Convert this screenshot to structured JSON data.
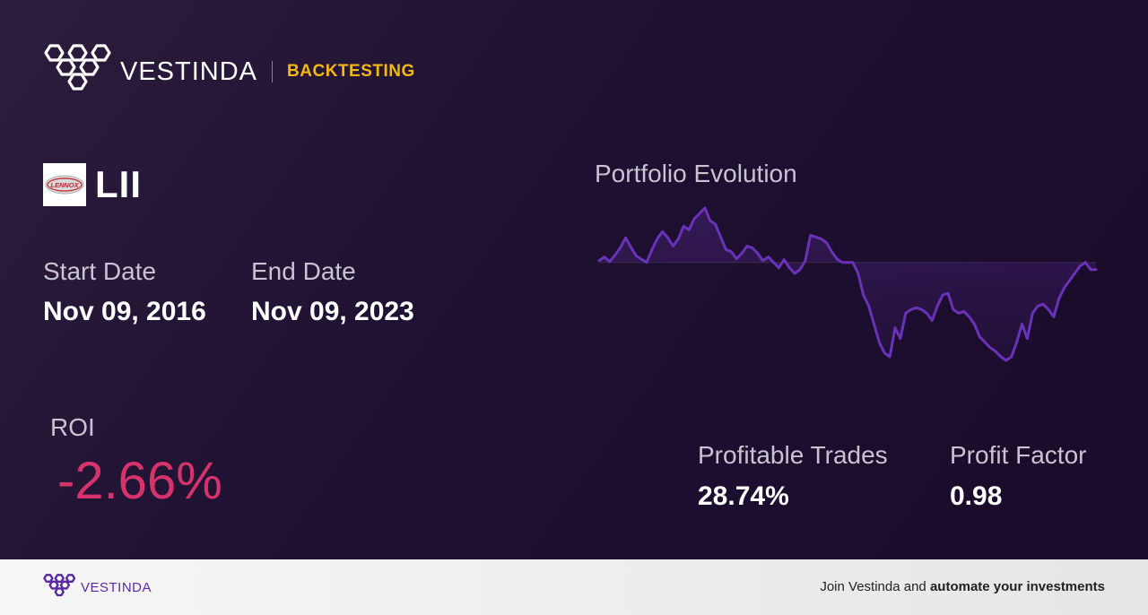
{
  "header": {
    "brand_name": "VESTINDA",
    "tag": "BACKTESTING",
    "logo_icon": "hexagon-cluster-logo-icon",
    "tag_color": "#f5b80e"
  },
  "ticker": {
    "symbol": "LII",
    "logo_text": "LENNOX"
  },
  "dates": {
    "start_label": "Start Date",
    "start_value": "Nov 09, 2016",
    "end_label": "End Date",
    "end_value": "Nov 09, 2023"
  },
  "roi": {
    "label": "ROI",
    "value": "-2.66%",
    "color": "#d6336c"
  },
  "chart": {
    "title": "Portfolio Evolution",
    "line_color": "#6a32b8"
  },
  "chart_data": {
    "type": "area",
    "title": "Portfolio Evolution",
    "xlabel": "",
    "ylabel": "",
    "baseline": 0,
    "grid": false,
    "series": [
      {
        "values": [
          0.5,
          1.5,
          0.2,
          2.0,
          4.0,
          6.8,
          4.2,
          1.8,
          0.9,
          0.0,
          3.5,
          6.5,
          8.5,
          6.8,
          4.5,
          6.5,
          10.0,
          9.0,
          12.0,
          13.5,
          15.0,
          11.5,
          10.5,
          7.0,
          3.5,
          3.0,
          1.0,
          2.5,
          4.5,
          4.0,
          2.5,
          0.5,
          1.5,
          0.0,
          -1.5,
          0.8,
          -1.5,
          -3.0,
          -2.0,
          0.5,
          7.5,
          7.0,
          6.5,
          5.5,
          3.0,
          1.0,
          0.0,
          0.0,
          0.0,
          -3.0,
          -9.0,
          -12.0,
          -17.0,
          -22.0,
          -25.0,
          -26.0,
          -18.0,
          -21.0,
          -14.0,
          -13.0,
          -12.5,
          -13.0,
          -14.0,
          -16.0,
          -12.0,
          -9.0,
          -8.5,
          -13.0,
          -14.0,
          -13.5,
          -15.0,
          -17.0,
          -20.5,
          -22.0,
          -23.5,
          -24.5,
          -26.0,
          -27.0,
          -26.0,
          -22.0,
          -17.0,
          -21.0,
          -14.0,
          -12.0,
          -11.5,
          -13.0,
          -15.0,
          -10.0,
          -7.0,
          -5.0,
          -3.0,
          -1.0,
          0.0,
          -2.0,
          -2.0
        ]
      }
    ]
  },
  "stats": {
    "profitable_trades_label": "Profitable Trades",
    "profitable_trades_value": "28.74%",
    "profit_factor_label": "Profit Factor",
    "profit_factor_value": "0.98"
  },
  "footer": {
    "brand_name": "VESTINDA",
    "cta_prefix": "Join Vestinda and ",
    "cta_bold": "automate your investments",
    "brand_color": "#5b2aa3"
  }
}
